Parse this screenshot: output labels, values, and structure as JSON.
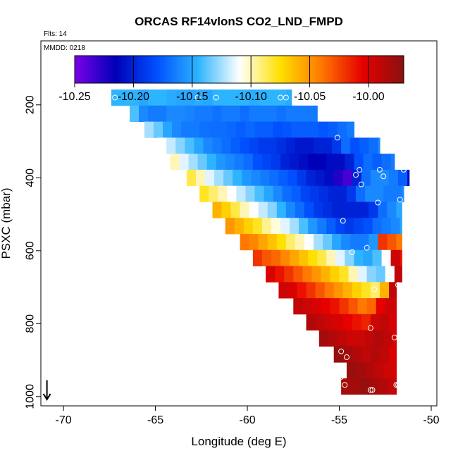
{
  "chart_data": {
    "type": "heatmap",
    "title": "ORCAS RF14vlonS CO2_LND_FMPD",
    "top_left_label": "Flts: 14",
    "inner_label": "MMDD: 0218",
    "xlabel": "Longitude (deg E)",
    "ylabel": "PSXC (mbar)",
    "xlim": [
      -71,
      -50
    ],
    "ylim": [
      1010,
      40
    ],
    "y_inverted": true,
    "grid": false,
    "x_ticks": [
      -70,
      -65,
      -60,
      -55,
      -50
    ],
    "y_ticks": [
      200,
      400,
      600,
      800,
      1000
    ],
    "x_tick_labels": [
      "-70",
      "-65",
      "-60",
      "-55",
      "-50"
    ],
    "y_tick_labels": [
      "200",
      "400",
      "600",
      "800",
      "1000"
    ],
    "colorbar": {
      "placement": "top",
      "min": -10.25,
      "max": -9.97,
      "ticks": [
        -10.25,
        -10.2,
        -10.15,
        -10.1,
        -10.05,
        -10.0
      ],
      "tick_labels": [
        "-10.25",
        "-10.20",
        "-10.15",
        "-10.10",
        "-10.05",
        "-10.00"
      ],
      "stops": [
        "#7a00e6",
        "#0000b8",
        "#0050ff",
        "#2db4ff",
        "#ffffff",
        "#ffe000",
        "#ff7800",
        "#e60000",
        "#8a1010"
      ]
    },
    "arrow": {
      "x": -70.9,
      "from_pressure": 955,
      "to_pressure": 1008
    },
    "band_height_mbar": 44,
    "bands": [
      {
        "p": 180,
        "lon_start": -67.4,
        "lon_end": -57.6,
        "step": 0.5,
        "values": [
          -10.145,
          -10.145,
          -10.145,
          -10.15,
          -10.145,
          -10.145,
          -10.148,
          -10.15,
          -10.15,
          -10.148,
          -10.15,
          -10.145,
          -10.145,
          -10.145,
          -10.145,
          -10.148,
          -10.145,
          -10.145,
          -10.145,
          -10.148
        ]
      },
      {
        "p": 224,
        "lon_start": -66.4,
        "lon_end": -56.2,
        "step": 0.5,
        "values": [
          -10.14,
          -10.16,
          -10.165,
          -10.165,
          -10.16,
          -10.16,
          -10.162,
          -10.165,
          -10.165,
          -10.168,
          -10.165,
          -10.165,
          -10.17,
          -10.165,
          -10.165,
          -10.165,
          -10.168,
          -10.165,
          -10.165,
          -10.165,
          -10.165
        ]
      },
      {
        "p": 268,
        "lon_start": -65.6,
        "lon_end": -54.2,
        "step": 0.5,
        "values": [
          -10.125,
          -10.135,
          -10.15,
          -10.16,
          -10.165,
          -10.165,
          -10.168,
          -10.17,
          -10.17,
          -10.172,
          -10.175,
          -10.172,
          -10.175,
          -10.175,
          -10.18,
          -10.178,
          -10.175,
          -10.175,
          -10.175,
          -10.178,
          -10.175,
          -10.17,
          -10.165
        ]
      },
      {
        "p": 312,
        "lon_start": -64.9,
        "lon_end": -52.8,
        "step": 0.5,
        "values": [
          -10.11,
          -10.12,
          -10.13,
          -10.14,
          -10.15,
          -10.16,
          -10.165,
          -10.17,
          -10.175,
          -10.18,
          -10.185,
          -10.19,
          -10.19,
          -10.195,
          -10.2,
          -10.205,
          -10.205,
          -10.2,
          -10.2,
          -10.19,
          -10.17,
          -10.18,
          -10.175,
          -10.17,
          -10.16
        ]
      },
      {
        "p": 356,
        "lon_start": -64.2,
        "lon_end": -52.0,
        "step": 0.5,
        "values": [
          -10.1,
          -10.115,
          -10.125,
          -10.135,
          -10.145,
          -10.155,
          -10.16,
          -10.165,
          -10.17,
          -10.18,
          -10.185,
          -10.19,
          -10.2,
          -10.205,
          -10.21,
          -10.215,
          -10.215,
          -10.21,
          -10.21,
          -10.2,
          -10.18,
          -10.17,
          -10.175,
          -10.17,
          -10.165
        ]
      },
      {
        "p": 400,
        "lon_start": -63.3,
        "lon_end": -51.2,
        "step": 0.5,
        "values": [
          -10.085,
          -10.1,
          -10.115,
          -10.125,
          -10.135,
          -10.145,
          -10.155,
          -10.16,
          -10.165,
          -10.17,
          -10.175,
          -10.18,
          -10.19,
          -10.2,
          -10.205,
          -10.21,
          -10.225,
          -10.235,
          -10.2,
          -10.17,
          -10.16,
          -10.16,
          -10.165,
          -10.175,
          -10.21
        ]
      },
      {
        "p": 444,
        "lon_start": -62.6,
        "lon_end": -51.5,
        "step": 0.5,
        "values": [
          -10.08,
          -10.09,
          -10.1,
          -10.11,
          -10.12,
          -10.13,
          -10.14,
          -10.15,
          -10.16,
          -10.17,
          -10.175,
          -10.185,
          -10.19,
          -10.195,
          -10.2,
          -10.2,
          -10.19,
          -10.17,
          -10.16,
          -10.16,
          -10.165,
          -10.165,
          -10.16
        ]
      },
      {
        "p": 488,
        "lon_start": -61.9,
        "lon_end": -51.6,
        "step": 0.5,
        "values": [
          -10.06,
          -10.07,
          -10.085,
          -10.1,
          -10.11,
          -10.12,
          -10.13,
          -10.145,
          -10.16,
          -10.17,
          -10.18,
          -10.19,
          -10.195,
          -10.2,
          -10.2,
          -10.2,
          -10.2,
          -10.19,
          -10.17,
          -10.16,
          -10.15
        ]
      },
      {
        "p": 532,
        "lon_start": -61.2,
        "lon_end": -51.6,
        "step": 0.5,
        "values": [
          -10.05,
          -10.06,
          -10.07,
          -10.08,
          -10.095,
          -10.105,
          -10.115,
          -10.125,
          -10.14,
          -10.155,
          -10.165,
          -10.175,
          -10.185,
          -10.19,
          -10.185,
          -10.18,
          -10.17,
          -10.165,
          -10.16,
          -10.15
        ]
      },
      {
        "p": 576,
        "lon_start": -60.4,
        "lon_end": -51.6,
        "step": 0.5,
        "values": [
          -10.04,
          -10.045,
          -10.055,
          -10.065,
          -10.075,
          -10.09,
          -10.1,
          -10.11,
          -10.125,
          -10.135,
          -10.15,
          -10.16,
          -10.165,
          -10.165,
          -10.155,
          -10.02,
          -10.03,
          -10.04
        ]
      },
      {
        "p": 620,
        "lon_start": -59.7,
        "lon_end": -51.6,
        "step": 0.5,
        "values": [
          -10.02,
          -10.03,
          -10.035,
          -10.045,
          -10.055,
          -10.065,
          -10.075,
          -10.085,
          -10.1,
          -10.115,
          -10.13,
          -10.145,
          -10.15,
          -10.14,
          -10.11,
          -9.995,
          -10.01,
          -10.03
        ]
      },
      {
        "p": 664,
        "lon_start": -59.0,
        "lon_end": -51.6,
        "step": 0.5,
        "values": [
          -10.0,
          -10.01,
          -10.02,
          -10.03,
          -10.04,
          -10.05,
          -10.06,
          -10.07,
          -10.08,
          -10.1,
          -10.115,
          -10.13,
          -10.135,
          -10.11,
          -9.99,
          -10.0,
          -10.02
        ]
      },
      {
        "p": 708,
        "lon_start": -58.3,
        "lon_end": -51.9,
        "step": 0.5,
        "values": [
          -9.995,
          -10.0,
          -10.01,
          -10.02,
          -10.03,
          -10.04,
          -10.05,
          -10.06,
          -10.07,
          -10.08,
          -10.09,
          -10.06,
          -9.99,
          -10.0
        ]
      },
      {
        "p": 752,
        "lon_start": -57.5,
        "lon_end": -51.9,
        "step": 0.5,
        "values": [
          -9.99,
          -9.995,
          -10.0,
          -10.005,
          -10.01,
          -10.02,
          -10.03,
          -10.04,
          -10.035,
          -10.005,
          -9.995,
          -10.0
        ]
      },
      {
        "p": 796,
        "lon_start": -56.8,
        "lon_end": -51.9,
        "step": 0.5,
        "values": [
          -9.985,
          -9.99,
          -9.995,
          -10.0,
          -10.005,
          -10.01,
          -10.015,
          -9.995,
          -9.99,
          -10.0
        ]
      },
      {
        "p": 840,
        "lon_start": -56.1,
        "lon_end": -51.9,
        "step": 0.5,
        "values": [
          -9.98,
          -9.985,
          -9.99,
          -9.995,
          -9.995,
          -9.99,
          -9.985,
          -9.99,
          -10.0
        ]
      },
      {
        "p": 884,
        "lon_start": -55.3,
        "lon_end": -51.9,
        "step": 0.5,
        "values": [
          -9.975,
          -9.98,
          -9.985,
          -9.99,
          -9.985,
          -9.99,
          -10.0
        ]
      },
      {
        "p": 928,
        "lon_start": -54.6,
        "lon_end": -51.9,
        "step": 0.5,
        "values": [
          -9.975,
          -9.98,
          -9.985,
          -9.99,
          -9.995,
          -10.0
        ]
      },
      {
        "p": 972,
        "lon_start": -54.9,
        "lon_end": -51.9,
        "step": 0.5,
        "values": [
          -9.98,
          -9.98,
          -9.975,
          -9.98,
          -9.985,
          -9.99
        ]
      }
    ],
    "points": [
      {
        "x": -67.2,
        "y": 180
      },
      {
        "x": -62.7,
        "y": 180
      },
      {
        "x": -61.7,
        "y": 180
      },
      {
        "x": -58.2,
        "y": 180
      },
      {
        "x": -57.9,
        "y": 180
      },
      {
        "x": -55.1,
        "y": 290
      },
      {
        "x": -53.9,
        "y": 378
      },
      {
        "x": -52.8,
        "y": 378
      },
      {
        "x": -54.1,
        "y": 392
      },
      {
        "x": -52.6,
        "y": 396
      },
      {
        "x": -51.5,
        "y": 378
      },
      {
        "x": -53.8,
        "y": 418
      },
      {
        "x": -51.7,
        "y": 460
      },
      {
        "x": -52.9,
        "y": 468
      },
      {
        "x": -54.8,
        "y": 518
      },
      {
        "x": -53.5,
        "y": 592
      },
      {
        "x": -54.3,
        "y": 604
      },
      {
        "x": -52.2,
        "y": 676
      },
      {
        "x": -51.8,
        "y": 694
      },
      {
        "x": -53.1,
        "y": 706
      },
      {
        "x": -53.3,
        "y": 812
      },
      {
        "x": -52.0,
        "y": 838
      },
      {
        "x": -54.9,
        "y": 876
      },
      {
        "x": -54.6,
        "y": 892
      },
      {
        "x": -54.9,
        "y": 946
      },
      {
        "x": -54.7,
        "y": 968
      },
      {
        "x": -51.9,
        "y": 968
      },
      {
        "x": -51.8,
        "y": 968
      },
      {
        "x": -53.3,
        "y": 982
      },
      {
        "x": -53.2,
        "y": 982
      }
    ]
  }
}
